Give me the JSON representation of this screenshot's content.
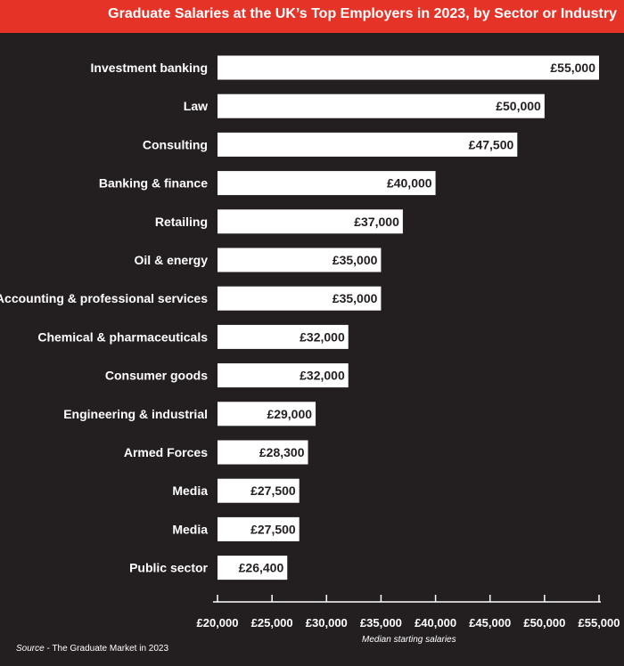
{
  "chart_data": {
    "type": "bar",
    "orientation": "horizontal",
    "title": "Graduate Salaries at the UK’s Top Employers in 2023, by Sector or Industry",
    "xlabel": "Median starting salaries",
    "ylabel": "",
    "categories": [
      "Investment banking",
      "Law",
      "Consulting",
      "Banking & finance",
      "Retailing",
      "Oil & energy",
      "Accounting & professional services",
      "Chemical & pharmaceuticals",
      "Consumer goods",
      "Engineering & industrial",
      "Armed Forces",
      "Media",
      "Media",
      "Public sector"
    ],
    "values": [
      55000,
      50000,
      47500,
      40000,
      37000,
      35000,
      35000,
      32000,
      32000,
      29000,
      28300,
      27500,
      27500,
      26400
    ],
    "value_labels": [
      "£55,000",
      "£50,000",
      "£47,500",
      "£40,000",
      "£37,000",
      "£35,000",
      "£35,000",
      "£32,000",
      "£32,000",
      "£29,000",
      "£28,300",
      "£27,500",
      "£27,500",
      "£26,400"
    ],
    "xlim": [
      20000,
      55000
    ],
    "xticks": [
      20000,
      25000,
      30000,
      35000,
      40000,
      45000,
      50000,
      55000
    ],
    "xtick_labels": [
      "£20,000",
      "£25,000",
      "£30,000",
      "£35,000",
      "£40,000",
      "£45,000",
      "£50,000",
      "£55,000"
    ],
    "grid": false,
    "legend": "none",
    "source_prefix": "Source",
    "source_text": " - The Graduate Market in 2023"
  },
  "colors": {
    "background": "#231f20",
    "title_bar": "#e63327",
    "bar": "#ffffff",
    "text": "#ffffff",
    "bar_text": "#231f20"
  }
}
